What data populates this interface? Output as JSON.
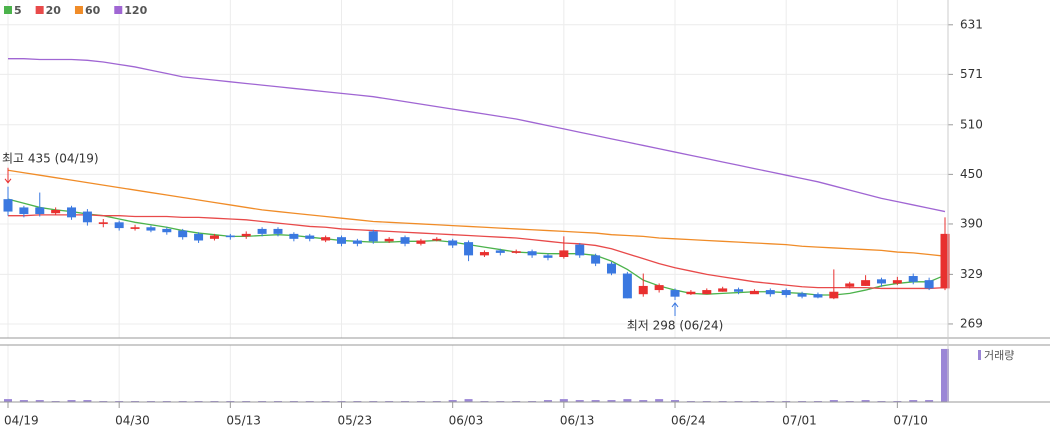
{
  "chart_data": {
    "type": "candlestick",
    "categories": [
      "04/19",
      null,
      null,
      null,
      null,
      null,
      null,
      "04/30",
      null,
      null,
      null,
      null,
      null,
      null,
      "05/13",
      null,
      null,
      null,
      null,
      null,
      null,
      "05/23",
      null,
      null,
      null,
      null,
      null,
      null,
      "06/03",
      null,
      null,
      null,
      null,
      null,
      null,
      "06/13",
      null,
      null,
      null,
      null,
      null,
      null,
      "06/24",
      null,
      null,
      null,
      null,
      null,
      null,
      "07/01",
      null,
      null,
      null,
      null,
      null,
      null,
      "07/10",
      null,
      null,
      null
    ],
    "open": [
      420,
      410,
      410,
      403,
      410,
      405,
      390,
      392,
      384,
      386,
      384,
      382,
      378,
      372,
      376,
      375,
      384,
      384,
      378,
      376,
      370,
      374,
      370,
      381,
      369,
      374,
      366,
      370,
      370,
      368,
      352,
      358,
      355,
      357,
      352,
      350,
      365,
      352,
      342,
      330,
      305,
      310,
      310,
      305,
      305,
      308,
      311,
      305,
      310,
      310,
      306,
      305,
      300,
      314,
      315,
      323,
      318,
      327,
      322,
      312
    ],
    "high": [
      435,
      412,
      428,
      410,
      412,
      408,
      396,
      394,
      389,
      388,
      386,
      384,
      380,
      378,
      378,
      381,
      386,
      386,
      380,
      378,
      376,
      376,
      372,
      383,
      374,
      376,
      372,
      374,
      372,
      370,
      358,
      360,
      359,
      359,
      354,
      375,
      367,
      354,
      344,
      332,
      330,
      318,
      312,
      310,
      312,
      314,
      313,
      311,
      312,
      312,
      308,
      307,
      335,
      320,
      328,
      325,
      326,
      330,
      325,
      398
    ],
    "low": [
      400,
      398,
      399,
      401,
      395,
      388,
      386,
      382,
      382,
      380,
      377,
      371,
      367,
      370,
      371,
      372,
      375,
      375,
      369,
      369,
      368,
      363,
      363,
      366,
      367,
      363,
      364,
      369,
      361,
      345,
      350,
      352,
      354,
      349,
      346,
      348,
      349,
      339,
      328,
      300,
      302,
      307,
      298,
      304,
      306,
      308,
      305,
      306,
      302,
      301,
      300,
      300,
      299,
      312,
      315,
      314,
      316,
      317,
      310,
      310
    ],
    "close": [
      405,
      402,
      402,
      407,
      398,
      392,
      392,
      385,
      386,
      382,
      380,
      374,
      370,
      376,
      374,
      378,
      378,
      378,
      372,
      372,
      374,
      366,
      366,
      369,
      372,
      366,
      370,
      372,
      364,
      352,
      356,
      355,
      357,
      352,
      349,
      358,
      352,
      342,
      330,
      300,
      315,
      316,
      302,
      308,
      310,
      312,
      308,
      309,
      305,
      304,
      302,
      301,
      308,
      318,
      322,
      318,
      322,
      320,
      312,
      378
    ],
    "up_color": "#e8302f",
    "down_color": "#3a78e0",
    "series": [
      {
        "name": "5",
        "color": "#4cb34c",
        "values": [
          420,
          415,
          410,
          407,
          405,
          402,
          400,
          396,
          392,
          389,
          386,
          382,
          379,
          377,
          375,
          375,
          376,
          377,
          376,
          374,
          372,
          370,
          369,
          368,
          368,
          369,
          369,
          370,
          368,
          365,
          362,
          359,
          356,
          355,
          354,
          354,
          354,
          352,
          345,
          335,
          322,
          315,
          310,
          306,
          305,
          306,
          307,
          308,
          308,
          307,
          306,
          304,
          304,
          306,
          310,
          315,
          318,
          320,
          320,
          328
        ]
      },
      {
        "name": "20",
        "color": "#e84a4a",
        "values": [
          400,
          400,
          401,
          401,
          401,
          401,
          400,
          400,
          399,
          399,
          399,
          398,
          398,
          397,
          396,
          395,
          393,
          391,
          389,
          387,
          386,
          384,
          383,
          382,
          381,
          380,
          379,
          378,
          377,
          376,
          375,
          374,
          373,
          371,
          369,
          367,
          366,
          364,
          360,
          354,
          348,
          342,
          337,
          333,
          329,
          326,
          323,
          320,
          318,
          316,
          314,
          313,
          313,
          313,
          313,
          312,
          312,
          312,
          312,
          313
        ]
      },
      {
        "name": "60",
        "color": "#f08c28",
        "values": [
          455,
          452,
          449,
          446,
          443,
          440,
          437,
          434,
          431,
          428,
          425,
          422,
          419,
          416,
          413,
          410,
          407,
          405,
          403,
          401,
          399,
          397,
          395,
          393,
          392,
          391,
          390,
          389,
          388,
          387,
          386,
          385,
          384,
          383,
          382,
          381,
          380,
          379,
          377,
          376,
          375,
          373,
          372,
          371,
          370,
          369,
          368,
          367,
          366,
          365,
          363,
          362,
          361,
          360,
          359,
          358,
          356,
          355,
          353,
          351
        ]
      },
      {
        "name": "120",
        "color": "#a066d3",
        "values": [
          590,
          590,
          589,
          589,
          589,
          588,
          586,
          583,
          580,
          576,
          572,
          568,
          566,
          564,
          562,
          560,
          558,
          556,
          554,
          552,
          550,
          548,
          546,
          544,
          541,
          538,
          535,
          532,
          529,
          526,
          523,
          520,
          517,
          513,
          509,
          505,
          501,
          497,
          493,
          489,
          485,
          481,
          477,
          473,
          469,
          465,
          461,
          457,
          453,
          449,
          445,
          441,
          436,
          431,
          426,
          421,
          417,
          413,
          409,
          405
        ]
      }
    ],
    "ylim": [
      252,
      661
    ],
    "yticks": [
      269,
      329,
      390,
      450,
      510,
      571,
      631
    ],
    "grid": true,
    "annotations": {
      "max": "최고 435 (04/19)",
      "min": "최저 298 (06/24)"
    },
    "volume": {
      "name": "거래량",
      "color": "#9b86d6",
      "values": [
        3,
        2,
        2,
        1,
        2,
        2,
        1,
        1,
        1,
        1,
        1,
        1,
        1,
        1,
        1,
        1,
        1,
        1,
        1,
        1,
        1,
        1,
        1,
        1,
        1,
        1,
        1,
        1,
        2,
        3,
        1,
        1,
        1,
        1,
        2,
        3,
        2,
        2,
        2,
        3,
        2,
        3,
        2,
        1,
        1,
        1,
        1,
        1,
        1,
        1,
        1,
        1,
        2,
        1,
        2,
        1,
        1,
        2,
        2,
        55
      ],
      "ylim": [
        0,
        57
      ]
    }
  }
}
